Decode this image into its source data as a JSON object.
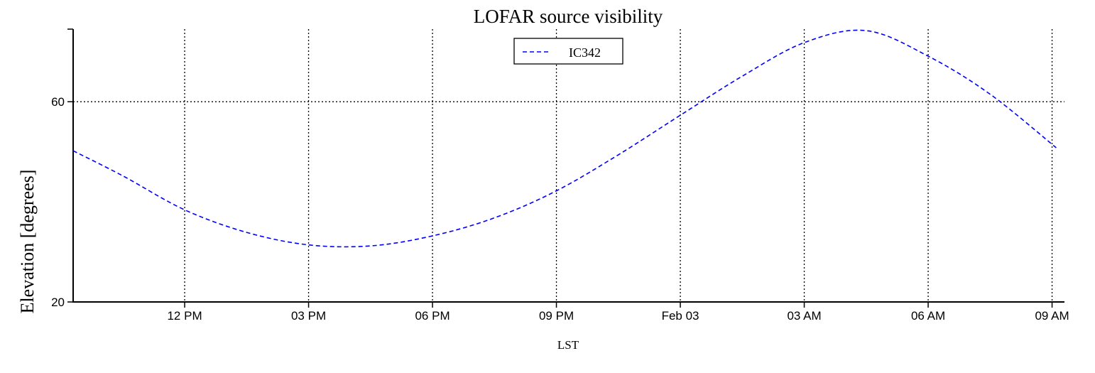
{
  "chart_data": {
    "type": "line",
    "title": "LOFAR source visibility",
    "xlabel": "LST",
    "ylabel": "Elevation [degrees]",
    "x_ticks": [
      "12 PM",
      "03 PM",
      "06 PM",
      "09 PM",
      "Feb 03",
      "03 AM",
      "06 AM",
      "09 AM"
    ],
    "x_range_hours": [
      -2.7,
      21.3
    ],
    "x_tick_hours": [
      0,
      3,
      6,
      9,
      12,
      15,
      18,
      21
    ],
    "y_ticks": [
      20,
      60
    ],
    "ylim": [
      20,
      74.5
    ],
    "grid": true,
    "legend_position": "top-center",
    "series": [
      {
        "name": "IC342",
        "color": "#0000ff",
        "style": "dashed",
        "x_hours": [
          -2.7,
          -1.5,
          0,
          1.5,
          3,
          4.5,
          6,
          7.5,
          9,
          10.5,
          12,
          13.5,
          15,
          16.5,
          18,
          19.5,
          21.1
        ],
        "values": [
          50.2,
          45.2,
          38.4,
          33.9,
          31.4,
          31.2,
          33.2,
          36.8,
          42.2,
          49.4,
          57.3,
          65.1,
          71.8,
          74.2,
          69.1,
          61.5,
          50.8
        ]
      }
    ]
  }
}
